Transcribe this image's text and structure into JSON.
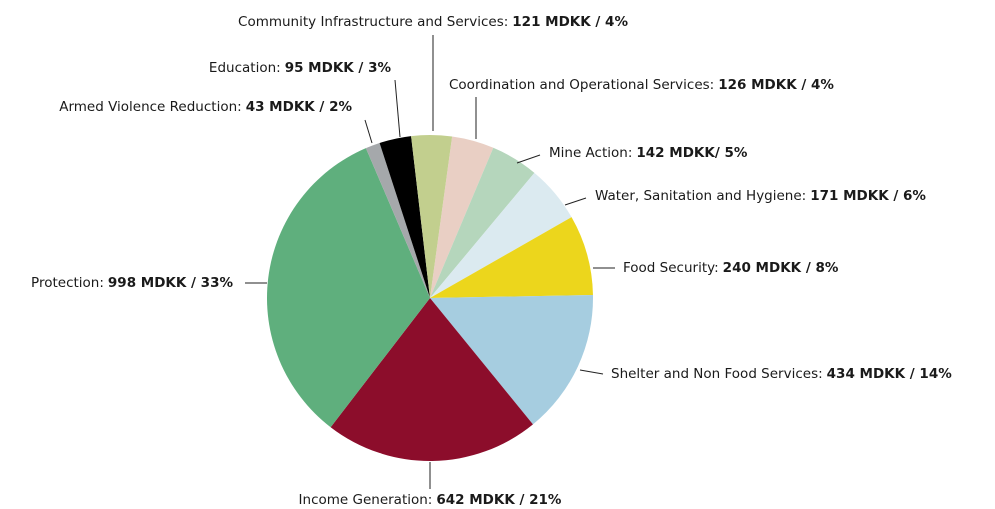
{
  "chart_data": {
    "type": "pie",
    "categories": [
      "Coordination and Operational Services:",
      "Mine Action:",
      "Water, Sanitation and Hygiene:",
      "Food Security:",
      "Shelter and Non Food Services:",
      "Income Generation:",
      "Protection:",
      "Armed Violence Reduction:",
      "Education:",
      "Community Infrastructure and Services:"
    ],
    "values": [
      126,
      142,
      171,
      240,
      434,
      642,
      998,
      43,
      95,
      121
    ],
    "value_labels": [
      "126 MDKK / 4%",
      "142 MDKK/ 5%",
      "171 MDKK / 6%",
      "240 MDKK / 8%",
      "434 MDKK / 14%",
      "642 MDKK / 21%",
      "998 MDKK / 33%",
      "43 MDKK / 2%",
      "95 MDKK / 3%",
      "121 MDKK / 4%"
    ],
    "colors": [
      "#e9cfc4",
      "#b5d6bc",
      "#dbeaf0",
      "#ecd61c",
      "#a6cde0",
      "#8c0d2b",
      "#5faf7d",
      "#a5a8ab",
      "#000000",
      "#c2cf8e"
    ]
  }
}
